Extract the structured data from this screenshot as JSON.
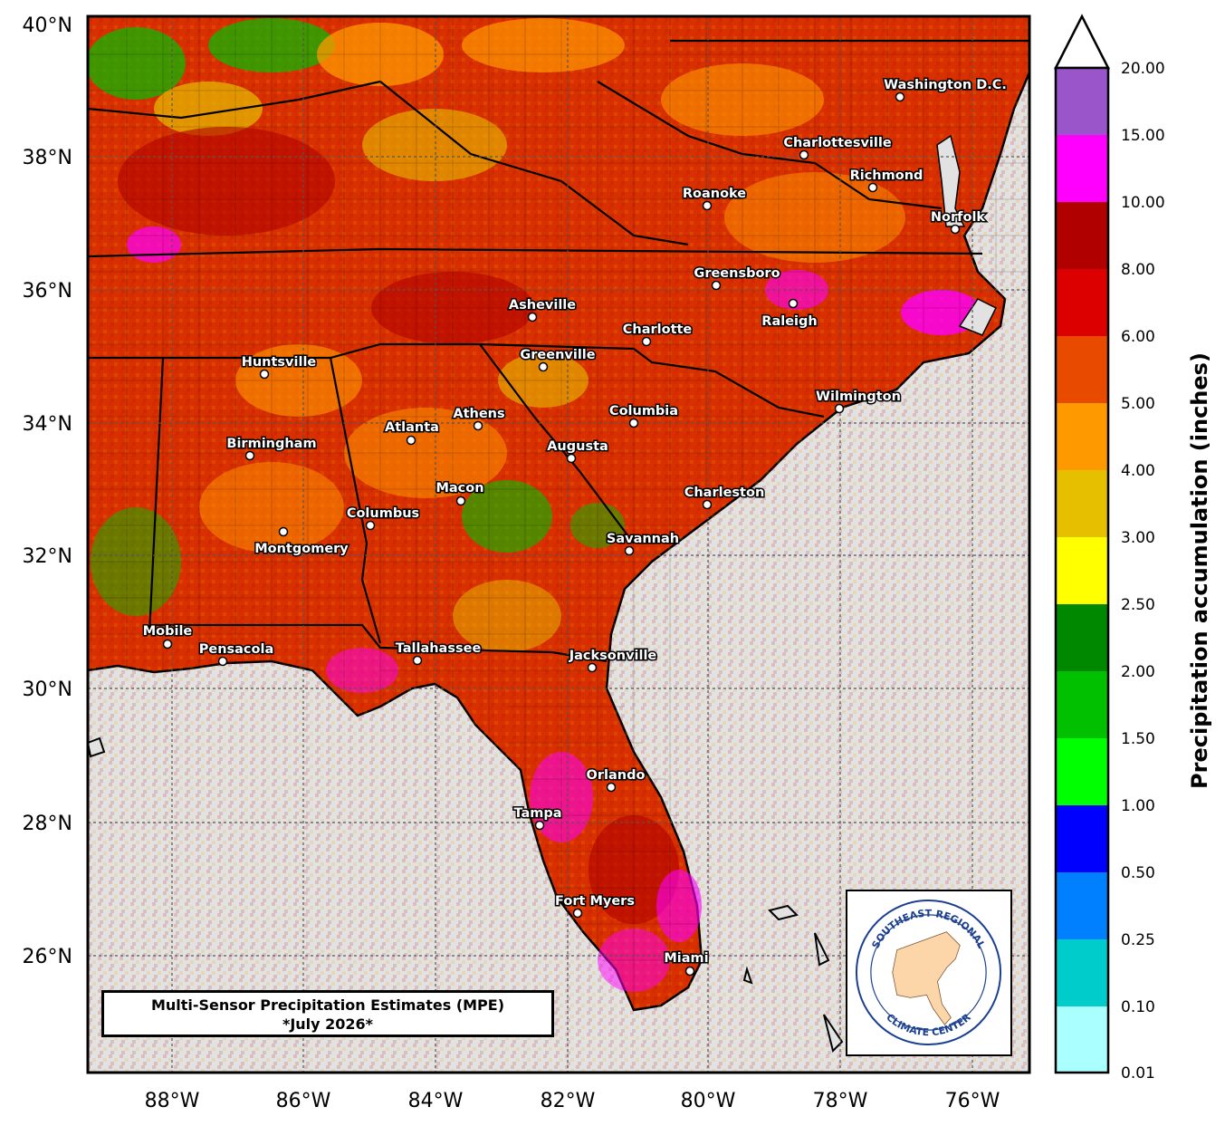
{
  "map": {
    "lat_labels": [
      "40°N",
      "38°N",
      "36°N",
      "34°N",
      "32°N",
      "30°N",
      "28°N",
      "26°N"
    ],
    "lon_labels": [
      "88°W",
      "86°W",
      "84°W",
      "82°W",
      "80°W",
      "78°W",
      "76°W"
    ],
    "cities": [
      {
        "name": "Washington D.C."
      },
      {
        "name": "Charlottesville"
      },
      {
        "name": "Richmond"
      },
      {
        "name": "Roanoke"
      },
      {
        "name": "Norfolk"
      },
      {
        "name": "Greensboro"
      },
      {
        "name": "Raleigh"
      },
      {
        "name": "Asheville"
      },
      {
        "name": "Charlotte"
      },
      {
        "name": "Greenville"
      },
      {
        "name": "Huntsville"
      },
      {
        "name": "Wilmington"
      },
      {
        "name": "Athens"
      },
      {
        "name": "Columbia"
      },
      {
        "name": "Atlanta"
      },
      {
        "name": "Birmingham"
      },
      {
        "name": "Augusta"
      },
      {
        "name": "Macon"
      },
      {
        "name": "Charleston"
      },
      {
        "name": "Columbus"
      },
      {
        "name": "Montgomery"
      },
      {
        "name": "Savannah"
      },
      {
        "name": "Mobile"
      },
      {
        "name": "Pensacola"
      },
      {
        "name": "Tallahassee"
      },
      {
        "name": "Jacksonville"
      },
      {
        "name": "Orlando"
      },
      {
        "name": "Tampa"
      },
      {
        "name": "Fort Myers"
      },
      {
        "name": "Miami"
      }
    ],
    "title_line1": "Multi-Sensor Precipitation Estimates (MPE)",
    "title_line2": "*July 2026*",
    "logo_top": "SOUTHEAST REGIONAL",
    "logo_bottom": "CLIMATE CENTER"
  },
  "colorbar": {
    "title": "Precipitation accumulation (inches)",
    "ticks": [
      "20.00",
      "15.00",
      "10.00",
      "8.00",
      "6.00",
      "5.00",
      "4.00",
      "3.00",
      "2.50",
      "2.00",
      "1.50",
      "1.00",
      "0.50",
      "0.25",
      "0.10",
      "0.01"
    ],
    "colors": [
      "#9955c9",
      "#ff00ff",
      "#b00000",
      "#dd0000",
      "#e84b00",
      "#ff9900",
      "#e6c000",
      "#ffff00",
      "#008800",
      "#00c000",
      "#00ff00",
      "#0000ff",
      "#0080ff",
      "#00cccc",
      "#00e0e0",
      "#aaffff"
    ],
    "overflow_color": "#ffffff"
  }
}
